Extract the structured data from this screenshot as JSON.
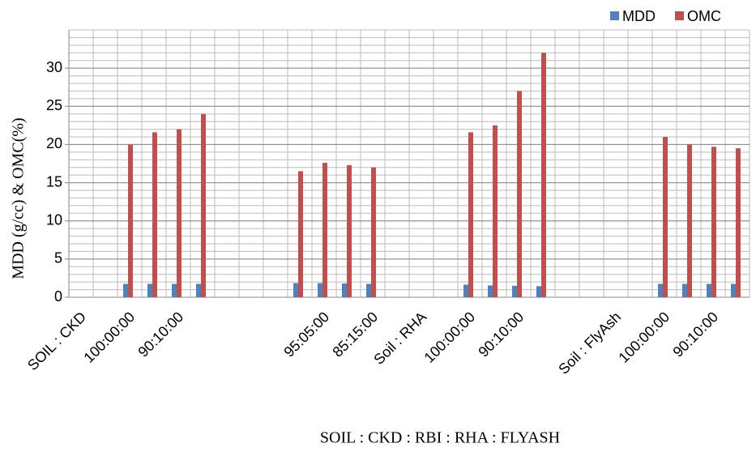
{
  "chart_data": {
    "type": "bar",
    "x_label": "SOIL : CKD : RBI : RHA : FLYASH",
    "y_label": "MDD (g/cc) & OMC(%)",
    "categories": [
      "SOIL : CKD",
      null,
      "100:00:00",
      null,
      "90:10:00",
      null,
      null,
      null,
      null,
      null,
      "95:05:00",
      null,
      "85:15:00",
      null,
      "Soil : RHA",
      null,
      "100:00:00",
      null,
      "90:10:00",
      null,
      null,
      null,
      "Soil : FlyAsh",
      null,
      "100:00:00",
      null,
      "90:10:00",
      null
    ],
    "series": [
      {
        "name": "MDD",
        "color": "#4f81bd",
        "values": [
          null,
          null,
          1.75,
          1.75,
          1.75,
          1.75,
          null,
          null,
          null,
          1.85,
          1.85,
          1.8,
          1.75,
          null,
          null,
          null,
          1.65,
          1.55,
          1.5,
          1.45,
          null,
          null,
          null,
          null,
          1.75,
          1.75,
          1.75,
          1.75
        ]
      },
      {
        "name": "OMC",
        "color": "#c0504d",
        "values": [
          null,
          null,
          20,
          21.6,
          22,
          24,
          null,
          null,
          null,
          16.5,
          17.6,
          17.3,
          17,
          null,
          null,
          null,
          21.6,
          22.5,
          27,
          32,
          null,
          null,
          null,
          null,
          21,
          20,
          19.7,
          19.5
        ]
      }
    ],
    "ylim": [
      0,
      35
    ],
    "yticks": [
      0,
      5,
      10,
      15,
      20,
      25,
      30
    ],
    "grid": true,
    "legend": "top-right"
  }
}
